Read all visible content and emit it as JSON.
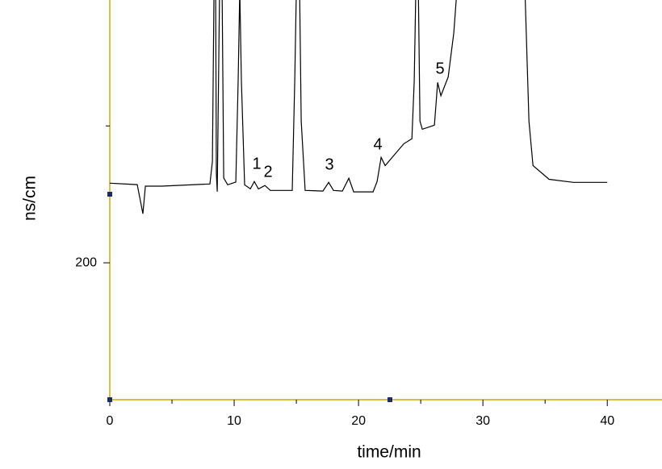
{
  "chart_data": {
    "type": "line",
    "x_label": "time/min",
    "y_label": "ns/cm",
    "x": [
      0,
      2.21,
      2.66,
      2.86,
      4.16,
      8.05,
      8.25,
      8.38,
      8.51,
      8.57,
      8.64,
      8.83,
      9.03,
      9.16,
      9.48,
      10.13,
      10.32,
      10.45,
      10.58,
      10.84,
      11.3,
      11.62,
      11.95,
      12.47,
      12.92,
      14.67,
      14.87,
      15.0,
      15.26,
      15.39,
      15.71,
      17.14,
      17.6,
      17.99,
      18.7,
      19.22,
      19.61,
      21.17,
      21.49,
      21.82,
      22.14,
      23.64,
      24.29,
      24.48,
      24.61,
      24.81,
      24.94,
      25.13,
      26.1,
      26.36,
      26.62,
      27.21,
      27.66,
      27.92,
      33.38,
      33.7,
      34.03,
      35.32,
      37.27,
      40
    ],
    "values": [
      258.2,
      257.1,
      235.9,
      256,
      256,
      257.6,
      274,
      400,
      400,
      265,
      252,
      400,
      400,
      262,
      257,
      259,
      333,
      400,
      333,
      257,
      254,
      259.4,
      254,
      256.5,
      252.9,
      252.9,
      333,
      400,
      400,
      303.5,
      252.9,
      252.4,
      258.8,
      252.9,
      252.4,
      261.8,
      251.8,
      251.8,
      259.4,
      277,
      271,
      287,
      290.6,
      333,
      400,
      400,
      303.5,
      297.6,
      300.6,
      331.8,
      322,
      335.9,
      368,
      400,
      400,
      303.5,
      271,
      261,
      258.8,
      258.8
    ],
    "color": "#000000",
    "annotations": [
      "1",
      "2",
      "3",
      "4",
      "5"
    ],
    "xlim": [
      0,
      44.4
    ],
    "ylim": [
      100,
      392
    ],
    "xticks": [
      0,
      10,
      20,
      30,
      40
    ],
    "xminorticks": [
      5,
      15,
      25,
      35
    ],
    "yticks": [
      200
    ],
    "yminorticks": [
      300
    ],
    "axis_color": "#d4a800"
  }
}
